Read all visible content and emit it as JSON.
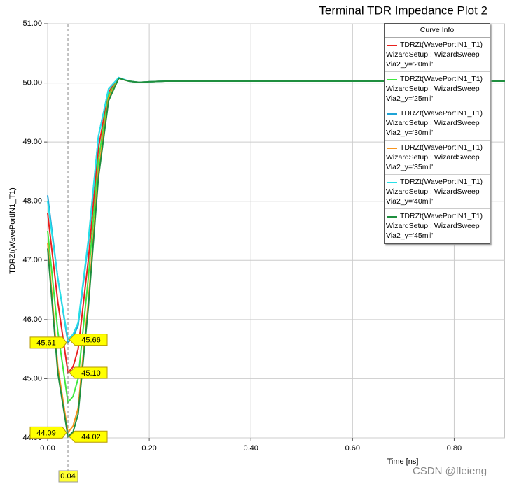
{
  "chart_data": {
    "type": "line",
    "title": "Terminal TDR Impedance Plot 2",
    "x_label": "Time [ns]",
    "y_label": "TDRZt(WavePortIN1_T1)",
    "legend_title": "Curve Info",
    "watermark": "CSDN @fleieng",
    "grid": true,
    "x": [
      0,
      0.02,
      0.04,
      0.05,
      0.06,
      0.08,
      0.1,
      0.12,
      0.14,
      0.16,
      0.18,
      0.2,
      0.23,
      0.9
    ],
    "series": [
      {
        "name": "TDRZt(WavePortIN1_T1)\nWizardSetup : WizardSweep\nVia2_y='20mil'",
        "color": "#e8211e",
        "values": [
          47.8,
          46.3,
          45.1,
          45.2,
          45.5,
          47.0,
          48.9,
          49.85,
          50.08,
          50.03,
          50.01,
          50.02,
          50.03,
          50.03
        ]
      },
      {
        "name": "TDRZt(WavePortIN1_T1)\nWizardSetup : WizardSweep\nVia2_y='25mil'",
        "color": "#3ee83e",
        "values": [
          47.5,
          45.8,
          44.6,
          44.7,
          45.0,
          46.7,
          48.7,
          49.8,
          50.08,
          50.03,
          50.01,
          50.02,
          50.03,
          50.03
        ]
      },
      {
        "name": "TDRZt(WavePortIN1_T1)\nWizardSetup : WizardSweep\nVia2_y='30mil'",
        "color": "#1fa3d6",
        "values": [
          48.1,
          46.7,
          45.61,
          45.7,
          45.9,
          47.3,
          49.1,
          49.9,
          50.09,
          50.03,
          50.01,
          50.02,
          50.03,
          50.03
        ]
      },
      {
        "name": "TDRZt(WavePortIN1_T1)\nWizardSetup : WizardSweep\nVia2_y='35mil'",
        "color": "#f7941d",
        "values": [
          47.3,
          45.2,
          44.09,
          44.2,
          44.5,
          46.3,
          48.5,
          49.75,
          50.08,
          50.03,
          50.01,
          50.02,
          50.03,
          50.03
        ]
      },
      {
        "name": "TDRZt(WavePortIN1_T1)\nWizardSetup : WizardSweep\nVia2_y='40mil'",
        "color": "#27e0e8",
        "values": [
          48.0,
          46.7,
          45.66,
          45.75,
          45.95,
          47.35,
          49.1,
          49.9,
          50.09,
          50.03,
          50.01,
          50.02,
          50.03,
          50.03
        ]
      },
      {
        "name": "TDRZt(WavePortIN1_T1)\nWizardSetup : WizardSweep\nVia2_y='45mil'",
        "color": "#1f8f3f",
        "values": [
          47.2,
          45.1,
          44.02,
          44.1,
          44.4,
          46.2,
          48.4,
          49.7,
          50.08,
          50.03,
          50.01,
          50.02,
          50.03,
          50.03
        ]
      }
    ],
    "markers": {
      "x": 0.04,
      "values": [
        45.61,
        45.66,
        45.1,
        44.09,
        44.02
      ],
      "value_labels": [
        "45.61",
        "45.66",
        "45.10",
        "44.09",
        "44.02"
      ]
    },
    "xlim": [
      0,
      0.9
    ],
    "ylim": [
      44,
      51
    ],
    "xticks": [
      {
        "value": 0,
        "label": "0.00"
      },
      {
        "value": 0.2,
        "label": "0.20"
      },
      {
        "value": 0.4,
        "label": "0.40"
      },
      {
        "value": 0.6,
        "label": "0.60"
      },
      {
        "value": 0.8,
        "label": "0.80"
      }
    ],
    "yticks": [
      {
        "value": 44,
        "label": "44.00"
      },
      {
        "value": 45,
        "label": "45.00"
      },
      {
        "value": 46,
        "label": "46.00"
      },
      {
        "value": 47,
        "label": "47.00"
      },
      {
        "value": 48,
        "label": "48.00"
      },
      {
        "value": 49,
        "label": "49.00"
      },
      {
        "value": 50,
        "label": "50.00"
      },
      {
        "value": 51,
        "label": "51.00"
      }
    ]
  }
}
